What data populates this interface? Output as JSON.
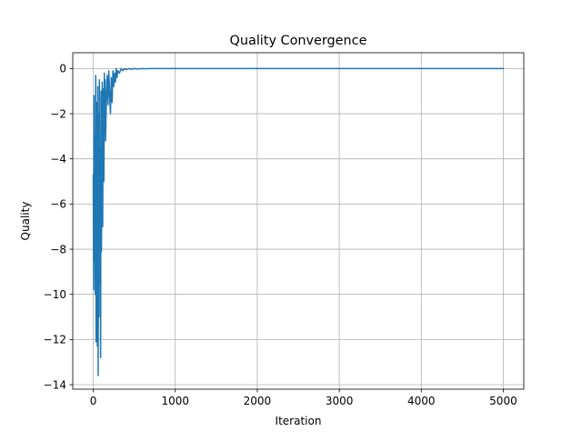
{
  "chart_data": {
    "type": "line",
    "title": "Quality Convergence",
    "xlabel": "Iteration",
    "ylabel": "Quality",
    "xlim": [
      -250,
      5250
    ],
    "ylim": [
      -14.2,
      0.7
    ],
    "xticks": [
      0,
      1000,
      2000,
      3000,
      4000,
      5000
    ],
    "yticks": [
      0,
      -2,
      -4,
      -6,
      -8,
      -10,
      -12,
      -14
    ],
    "grid": true,
    "legend": "none",
    "series": [
      {
        "color": "#1f77b4",
        "x": [
          0,
          5,
          10,
          15,
          20,
          25,
          30,
          35,
          40,
          45,
          50,
          55,
          60,
          65,
          70,
          75,
          80,
          85,
          90,
          95,
          100,
          105,
          110,
          115,
          120,
          125,
          130,
          135,
          140,
          145,
          150,
          160,
          170,
          180,
          190,
          200,
          210,
          220,
          230,
          240,
          250,
          260,
          270,
          280,
          290,
          300,
          320,
          340,
          360,
          380,
          400,
          430,
          460,
          500,
          550,
          600,
          650,
          700,
          750,
          800,
          1000,
          2000,
          3000,
          4000,
          5000
        ],
        "y": [
          -4.7,
          -9.8,
          -1.2,
          -8.5,
          -3.0,
          -10.0,
          -0.3,
          -12.1,
          -1.5,
          -6.5,
          -12.3,
          -0.8,
          -13.6,
          -2.0,
          -11.0,
          -0.5,
          -9.5,
          -3.5,
          -12.8,
          -1.0,
          -8.1,
          -4.0,
          -0.6,
          -7.0,
          -2.5,
          -0.9,
          -5.0,
          -0.2,
          -1.8,
          -0.5,
          -3.2,
          -1.4,
          -0.3,
          -1.6,
          -0.1,
          -1.2,
          -2.0,
          -0.4,
          -1.5,
          -0.1,
          -0.8,
          -0.2,
          -0.6,
          0.0,
          -0.4,
          -0.1,
          -0.2,
          0.0,
          -0.1,
          0.0,
          -0.05,
          0.0,
          -0.03,
          0.0,
          -0.02,
          0.0,
          -0.01,
          0.0,
          0.0,
          0.0,
          0.0,
          0.0,
          0.0,
          0.0,
          0.0
        ]
      }
    ]
  }
}
